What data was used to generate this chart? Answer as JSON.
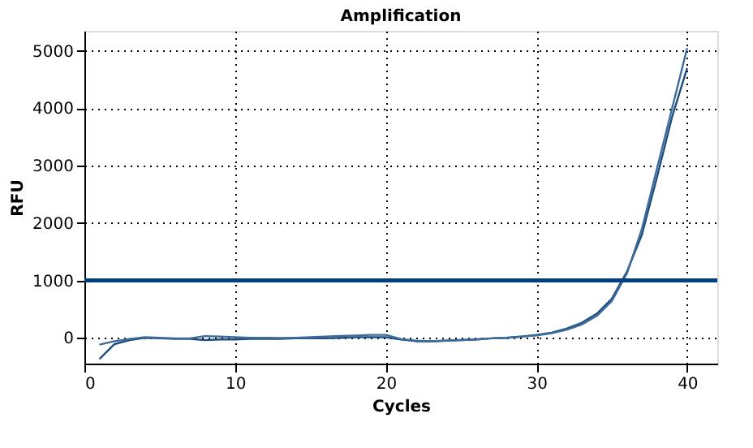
{
  "chart_data": {
    "type": "line",
    "title": "Amplification",
    "xlabel": "Cycles",
    "ylabel": "RFU",
    "x": [
      1,
      2,
      3,
      4,
      5,
      6,
      7,
      8,
      9,
      10,
      11,
      12,
      13,
      14,
      15,
      16,
      17,
      18,
      19,
      20,
      21,
      22,
      23,
      24,
      25,
      26,
      27,
      28,
      29,
      30,
      31,
      32,
      33,
      34,
      35,
      36,
      37,
      38,
      39,
      40
    ],
    "series": [
      {
        "color": "#1f4e7e",
        "values": [
          -370,
          -110,
          -40,
          0,
          -10,
          -20,
          -20,
          -40,
          -30,
          -30,
          -20,
          -20,
          -20,
          -10,
          -10,
          -10,
          0,
          10,
          10,
          10,
          -30,
          -60,
          -60,
          -50,
          -40,
          -30,
          -10,
          0,
          20,
          50,
          90,
          160,
          260,
          420,
          680,
          1150,
          1800,
          2800,
          3850,
          4700
        ]
      },
      {
        "color": "#3d6c9c",
        "values": [
          -120,
          -60,
          -20,
          10,
          0,
          -10,
          -10,
          30,
          20,
          10,
          0,
          0,
          -5,
          0,
          10,
          20,
          30,
          40,
          50,
          50,
          -20,
          -50,
          -60,
          -50,
          -40,
          -30,
          -10,
          0,
          20,
          40,
          80,
          140,
          230,
          380,
          640,
          1120,
          1900,
          2950,
          4000,
          5050
        ]
      }
    ],
    "xlim": [
      0,
      42
    ],
    "xticks": [
      0,
      10,
      20,
      30,
      40
    ],
    "ylim": [
      -450,
      5350
    ],
    "yticks": [
      0,
      1000,
      2000,
      3000,
      4000,
      5000
    ],
    "grid": true,
    "line_style": "solid",
    "ref_lines": [
      {
        "axis": "y",
        "value": 1000,
        "color": "#003f7f"
      }
    ]
  }
}
